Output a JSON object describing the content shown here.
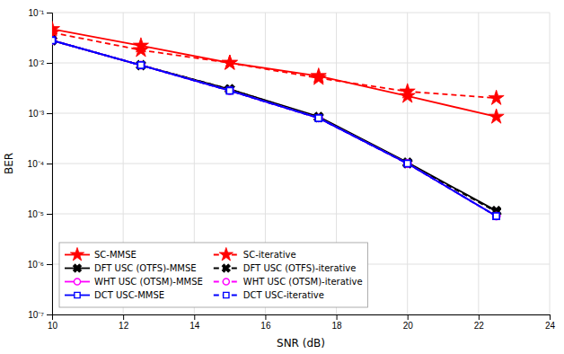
{
  "chart_data": {
    "type": "line",
    "x_label": "SNR (dB)",
    "y_label": "BER",
    "x": [
      10,
      12.5,
      15,
      17.5,
      20,
      22.5
    ],
    "series": [
      {
        "name": "SC-MMSE",
        "color": "#ff0000",
        "marker": "star",
        "line_style": "solid",
        "values": [
          0.047,
          0.022,
          0.01,
          0.0055,
          0.0022,
          0.00085
        ]
      },
      {
        "name": "SC-iterative",
        "color": "#ff0000",
        "marker": "star",
        "line_style": "dashed",
        "values": [
          0.04,
          0.018,
          0.01,
          0.005,
          0.0027,
          0.002
        ]
      },
      {
        "name": "DFT USC (OTFS)-MMSE",
        "color": "#000000",
        "marker": "x",
        "line_style": "solid",
        "values": [
          0.028,
          0.009,
          0.003,
          0.00085,
          0.000105,
          1.15e-05
        ]
      },
      {
        "name": "DFT USC (OTFS)-iterative",
        "color": "#000000",
        "marker": "x",
        "line_style": "dashed",
        "values": [
          0.028,
          0.009,
          0.003,
          0.00082,
          0.0001,
          1.1e-05
        ]
      },
      {
        "name": "WHT USC (OTSM)-MMSE",
        "color": "#ff00ff",
        "marker": "circle",
        "line_style": "solid",
        "values": [
          0.028,
          0.009,
          0.0028,
          0.0008,
          0.0001,
          9e-06
        ]
      },
      {
        "name": "WHT USC (OTSM)-iterative",
        "color": "#ff00ff",
        "marker": "circle",
        "line_style": "dashed",
        "values": [
          0.028,
          0.009,
          0.0028,
          0.0008,
          0.0001,
          9e-06
        ]
      },
      {
        "name": "DCT USC-MMSE",
        "color": "#0000ff",
        "marker": "square",
        "line_style": "solid",
        "values": [
          0.028,
          0.009,
          0.0028,
          0.0008,
          0.0001,
          9e-06
        ]
      },
      {
        "name": "DCT USC-iterative",
        "color": "#0000ff",
        "marker": "square",
        "line_style": "dashed",
        "values": [
          0.028,
          0.009,
          0.0028,
          0.0008,
          0.0001,
          9e-06
        ]
      }
    ],
    "xlim": [
      10,
      24
    ],
    "xticks": [
      10,
      12,
      14,
      16,
      18,
      20,
      22,
      24
    ],
    "ylim": [
      1e-07,
      0.1
    ],
    "yticks": [
      {
        "value": 1e-07,
        "label": "10⁻⁷"
      },
      {
        "value": 1e-06,
        "label": "10⁻⁶"
      },
      {
        "value": 1e-05,
        "label": "10⁻⁵"
      },
      {
        "value": 0.0001,
        "label": "10⁻⁴"
      },
      {
        "value": 0.001,
        "label": "10⁻³"
      },
      {
        "value": 0.01,
        "label": "10⁻²"
      },
      {
        "value": 0.1,
        "label": "10⁻¹"
      }
    ],
    "log": "y",
    "grid": true,
    "legend": "lower left"
  }
}
